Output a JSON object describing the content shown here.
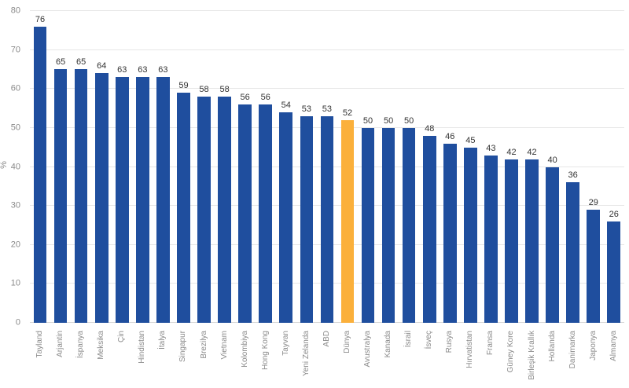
{
  "chart_data": {
    "type": "bar",
    "title": "",
    "xlabel": "",
    "ylabel": "%",
    "ylim": [
      0,
      80
    ],
    "yticks": [
      0,
      10,
      20,
      30,
      40,
      50,
      60,
      70,
      80
    ],
    "grid": true,
    "legend": "none",
    "highlight_category": "Dünya",
    "colors": {
      "bar": "#1F4E9E",
      "highlight": "#FBB03B",
      "grid": "#E7E7E7",
      "axis_text": "#8A8A8A",
      "value_label": "#333333",
      "background": "#FFFFFF"
    },
    "categories": [
      "Tayland",
      "Arjantin",
      "İspanya",
      "Meksika",
      "Çin",
      "Hindistan",
      "İtalya",
      "Singapur",
      "Brezilya",
      "Vietnam",
      "Kolombiya",
      "Hong Kong",
      "Tayvan",
      "Yeni Zelanda",
      "ABD",
      "Dünya",
      "Avustralya",
      "Kanada",
      "İsrail",
      "İsveç",
      "Rusya",
      "Hırvatistan",
      "Fransa",
      "Güney Kore",
      "Birleşik Krallık",
      "Hollanda",
      "Danimarka",
      "Japonya",
      "Almanya"
    ],
    "values": [
      76,
      65,
      65,
      64,
      63,
      63,
      63,
      59,
      58,
      58,
      56,
      56,
      54,
      53,
      53,
      52,
      50,
      50,
      50,
      48,
      46,
      45,
      43,
      42,
      42,
      40,
      36,
      29,
      26
    ]
  }
}
